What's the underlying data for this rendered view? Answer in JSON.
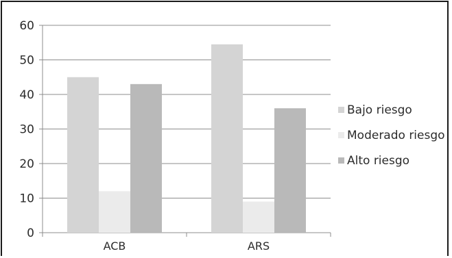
{
  "chart_data": {
    "type": "bar",
    "categories": [
      "ACB",
      "ARS"
    ],
    "series": [
      {
        "name": "Bajo riesgo",
        "values": [
          45,
          54.5
        ],
        "color": "#d4d4d4"
      },
      {
        "name": "Moderado riesgo",
        "values": [
          12,
          9
        ],
        "color": "#ebebeb"
      },
      {
        "name": "Alto riesgo",
        "values": [
          43,
          36
        ],
        "color": "#b9b9b9"
      }
    ],
    "yticks": [
      0,
      10,
      20,
      30,
      40,
      50,
      60
    ],
    "ylim": [
      0,
      60
    ],
    "grid": true,
    "legend_position": "right"
  }
}
